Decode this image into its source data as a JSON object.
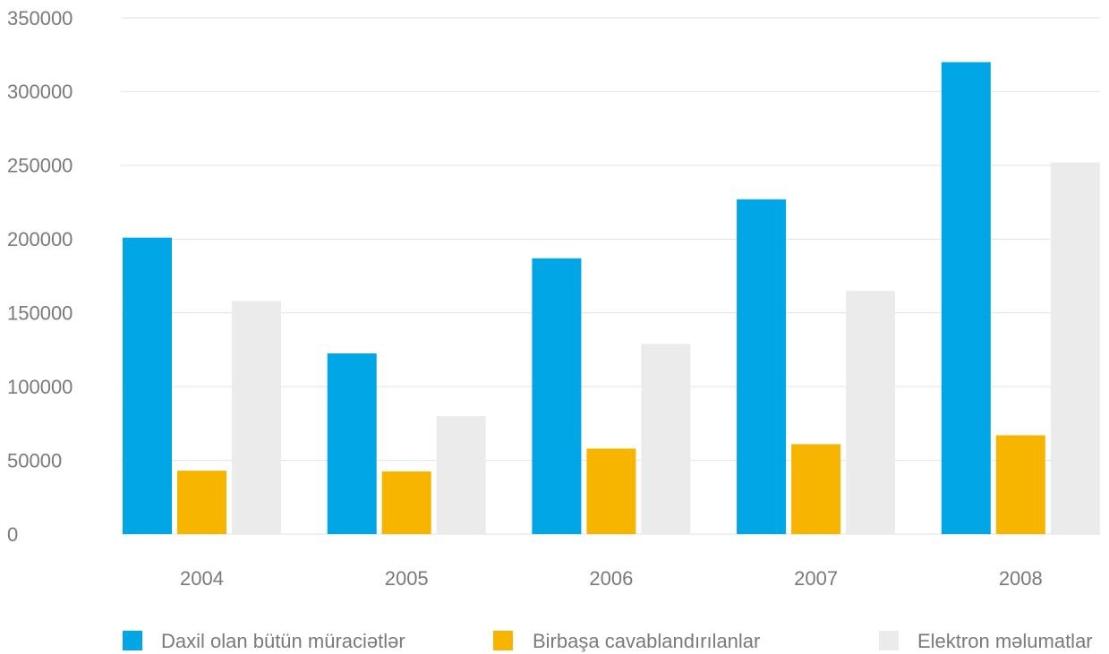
{
  "chart_data": {
    "type": "bar",
    "categories": [
      "2004",
      "2005",
      "2006",
      "2007",
      "2008"
    ],
    "series": [
      {
        "name": "Daxil olan bütün müraciətlər",
        "color": "#00a6e6",
        "values": [
          201000,
          122500,
          187000,
          227000,
          320000
        ]
      },
      {
        "name": "Birbaşa cavablandırılanlar",
        "color": "#f7b500",
        "values": [
          43000,
          42500,
          58000,
          61000,
          67000
        ]
      },
      {
        "name": "Elektron məlumatlar",
        "color": "#ebebeb",
        "values": [
          158000,
          80000,
          129000,
          165000,
          252000
        ]
      }
    ],
    "ylim": [
      0,
      350000
    ],
    "yticks": [
      0,
      50000,
      100000,
      150000,
      200000,
      250000,
      300000,
      350000
    ],
    "grid": true,
    "legend": "bottom"
  }
}
